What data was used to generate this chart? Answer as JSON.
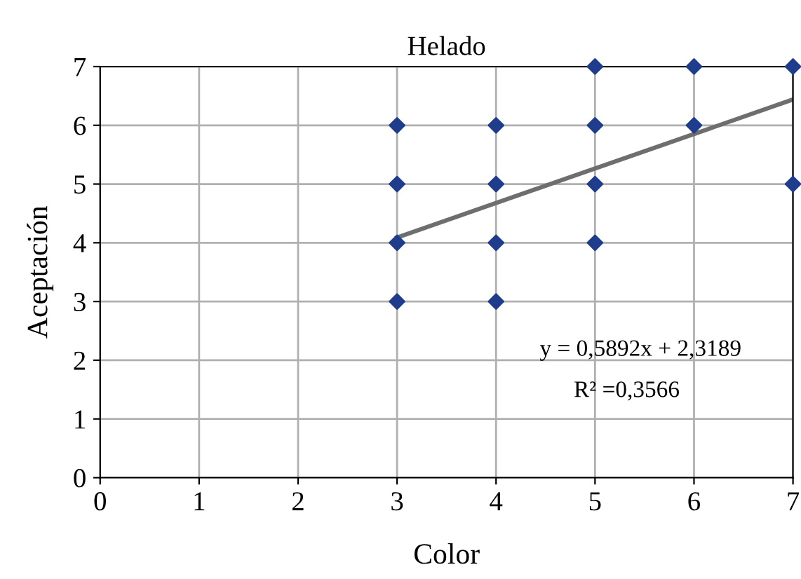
{
  "chart_data": {
    "type": "scatter",
    "title": "Helado",
    "xlabel": "Color",
    "ylabel": "Aceptación",
    "xlim": [
      0,
      7
    ],
    "ylim": [
      0,
      7
    ],
    "xticks": [
      0,
      1,
      2,
      3,
      4,
      5,
      6,
      7
    ],
    "yticks": [
      0,
      1,
      2,
      3,
      4,
      5,
      6,
      7
    ],
    "grid": true,
    "series": [
      {
        "marker": "diamond",
        "color": "#1f3d8c",
        "x": [
          3,
          3,
          3,
          3,
          4,
          4,
          4,
          4,
          5,
          5,
          5,
          5,
          6,
          6,
          7,
          7
        ],
        "values": [
          3,
          4,
          5,
          6,
          3,
          4,
          5,
          6,
          4,
          5,
          6,
          7,
          6,
          7,
          5,
          7
        ]
      },
      {
        "type": "line",
        "color": "#6e6e6e",
        "x": [
          3,
          7
        ],
        "values": [
          4.09,
          6.44
        ]
      }
    ],
    "annotations": [
      "y = 0,5892x + 2,3189",
      "R² =0,3566"
    ]
  }
}
